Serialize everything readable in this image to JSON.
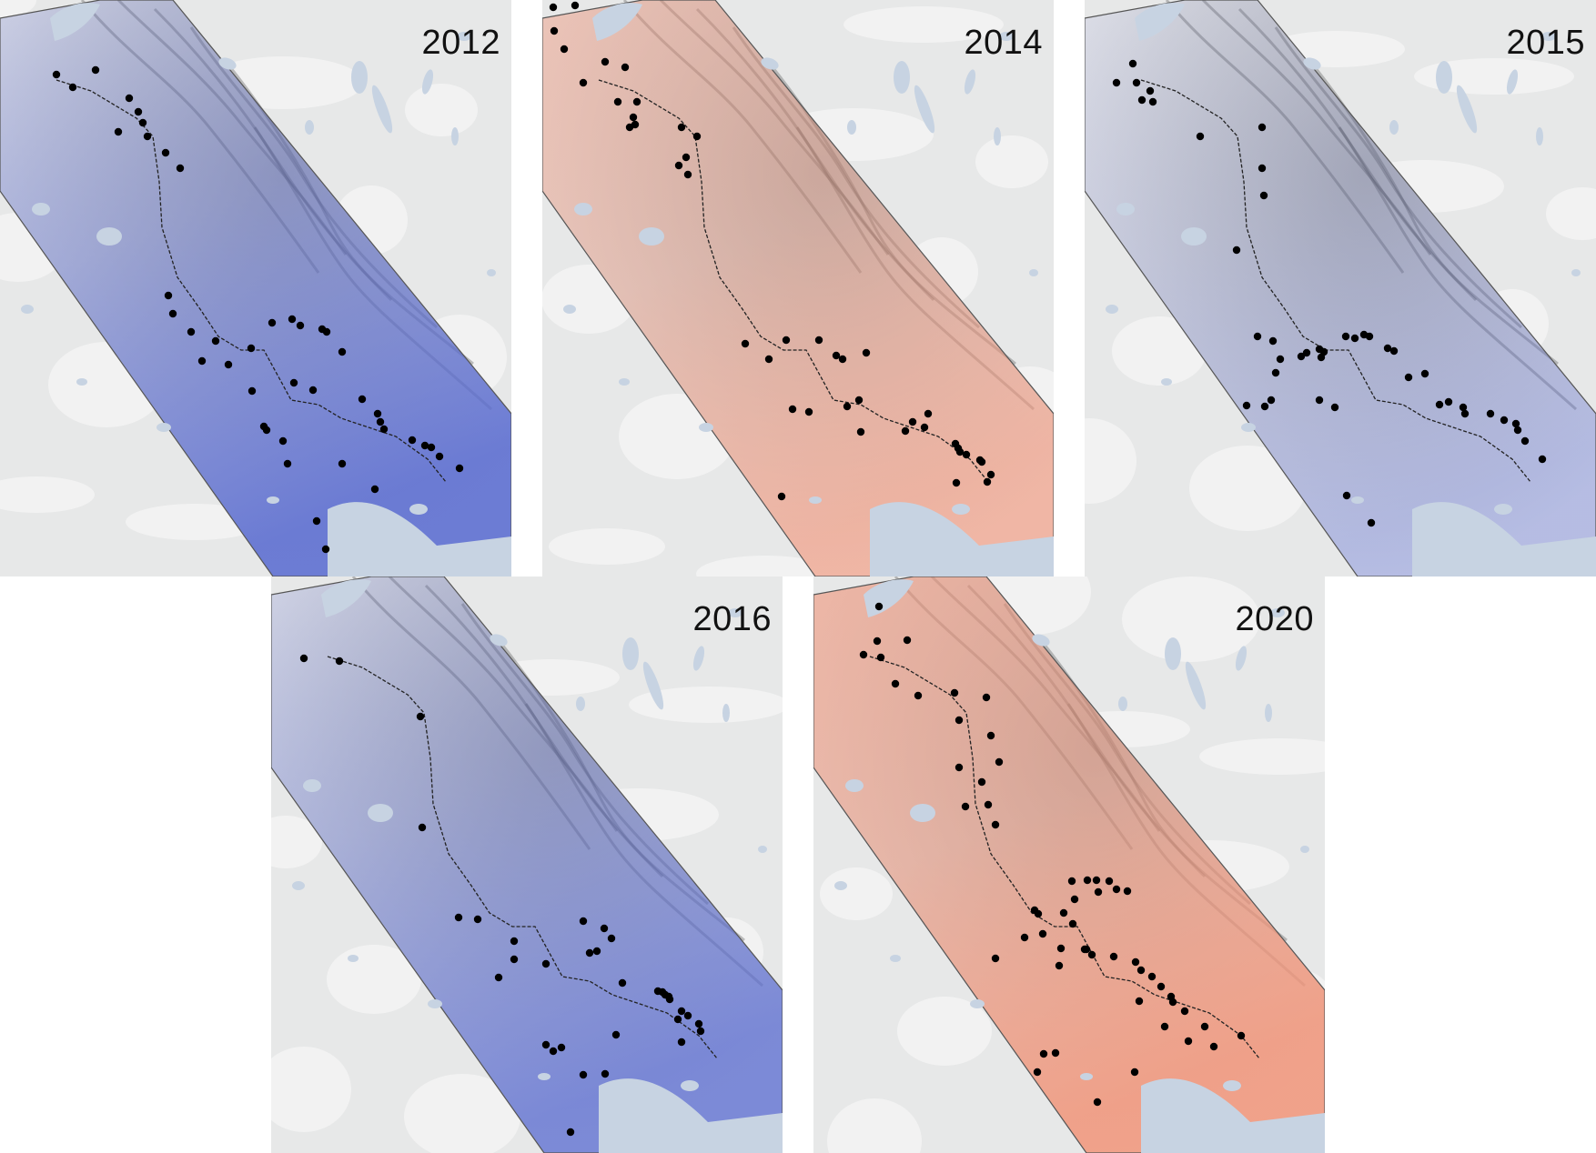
{
  "figure": {
    "panels": [
      {
        "year": "2012",
        "anomaly": "cold",
        "strength": 0.8
      },
      {
        "year": "2014",
        "anomaly": "warm",
        "strength": 0.55
      },
      {
        "year": "2015",
        "anomaly": "cold",
        "strength": 0.35
      },
      {
        "year": "2016",
        "anomaly": "cold",
        "strength": 0.7
      },
      {
        "year": "2020",
        "anomaly": "warm",
        "strength": 0.75
      }
    ],
    "colors": {
      "warm": "#f0957a",
      "cold": "#5a6cd0",
      "neutral": "#efefef",
      "water": "#c7d3e2",
      "terrain": "#e7e8e8",
      "station": "#000000",
      "route": "#222222",
      "corridor_outline": "#555555"
    },
    "legend": {
      "station_marker": "black-dot",
      "route_line": "dashed-line"
    }
  }
}
